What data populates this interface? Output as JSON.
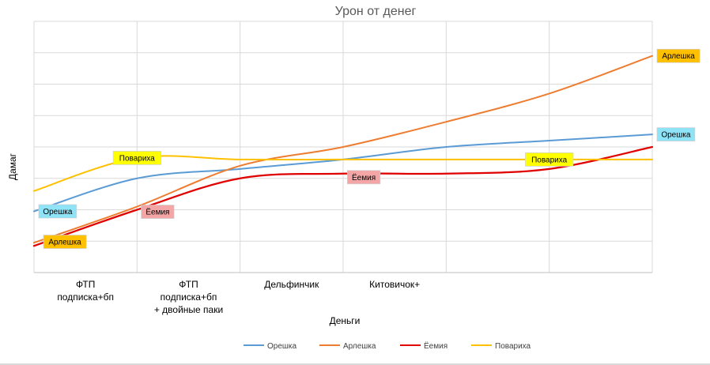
{
  "chart_data": {
    "type": "line",
    "title": "Урон от денег",
    "xlabel": "Деньги",
    "ylabel": "Дамаг",
    "categories": [
      "ФТП\nподписка+бп",
      "ФТП\nподписка+бп\n+ двойные паки",
      "Дельфинчик",
      "Китовичок+",
      "",
      ""
    ],
    "x_ticks": [
      0,
      1,
      2,
      3,
      4,
      5,
      6
    ],
    "ylim": [
      0,
      8
    ],
    "grid": {
      "vertical": true,
      "horizontal": true
    },
    "legend_position": "bottom",
    "series": [
      {
        "name": "Орешка",
        "color": "#5B9BD5",
        "x": [
          0,
          1,
          2,
          3,
          4,
          5,
          6
        ],
        "values": [
          1.95,
          3.0,
          3.3,
          3.6,
          4.0,
          4.2,
          4.4
        ]
      },
      {
        "name": "Арлешка",
        "color": "#ED7D31",
        "x": [
          0,
          1,
          2,
          3,
          4,
          5,
          6
        ],
        "values": [
          0.95,
          2.1,
          3.4,
          4.0,
          4.8,
          5.7,
          6.9
        ]
      },
      {
        "name": "Ёемия",
        "color": "#E00000",
        "x": [
          0,
          1,
          2,
          3,
          4,
          5,
          6
        ],
        "values": [
          0.85,
          2.0,
          3.0,
          3.15,
          3.15,
          3.3,
          4.0
        ]
      },
      {
        "name": "Повариха",
        "color": "#FFC000",
        "x": [
          0,
          1,
          2,
          3,
          4,
          5,
          6
        ],
        "values": [
          2.6,
          3.65,
          3.6,
          3.6,
          3.6,
          3.6,
          3.6
        ]
      }
    ],
    "callouts": [
      {
        "series": "Повариха",
        "text": "Повариха",
        "x": 1,
        "fill": "#FFFF00"
      },
      {
        "series": "Орешка",
        "text": "Орешка",
        "x": 0,
        "fill": "#8FE3F7"
      },
      {
        "series": "Ёемия",
        "text": "Ёемия",
        "x": 1.2,
        "fill": "#F4A6A6"
      },
      {
        "series": "Арлешка",
        "text": "Арлешка",
        "x": 0.3,
        "fill": "#FFC000"
      },
      {
        "series": "Ёемия",
        "text": "Ёемия",
        "x": 3.2,
        "fill": "#F4A6A6"
      },
      {
        "series": "Повариха",
        "text": "Повариха",
        "x": 5.0,
        "fill": "#FFFF00"
      },
      {
        "series": "Арлешка",
        "text": "Арлешка",
        "x": 6,
        "fill": "#FFC000"
      },
      {
        "series": "Орешка",
        "text": "Орешка",
        "x": 6,
        "fill": "#8FE3F7"
      }
    ]
  }
}
